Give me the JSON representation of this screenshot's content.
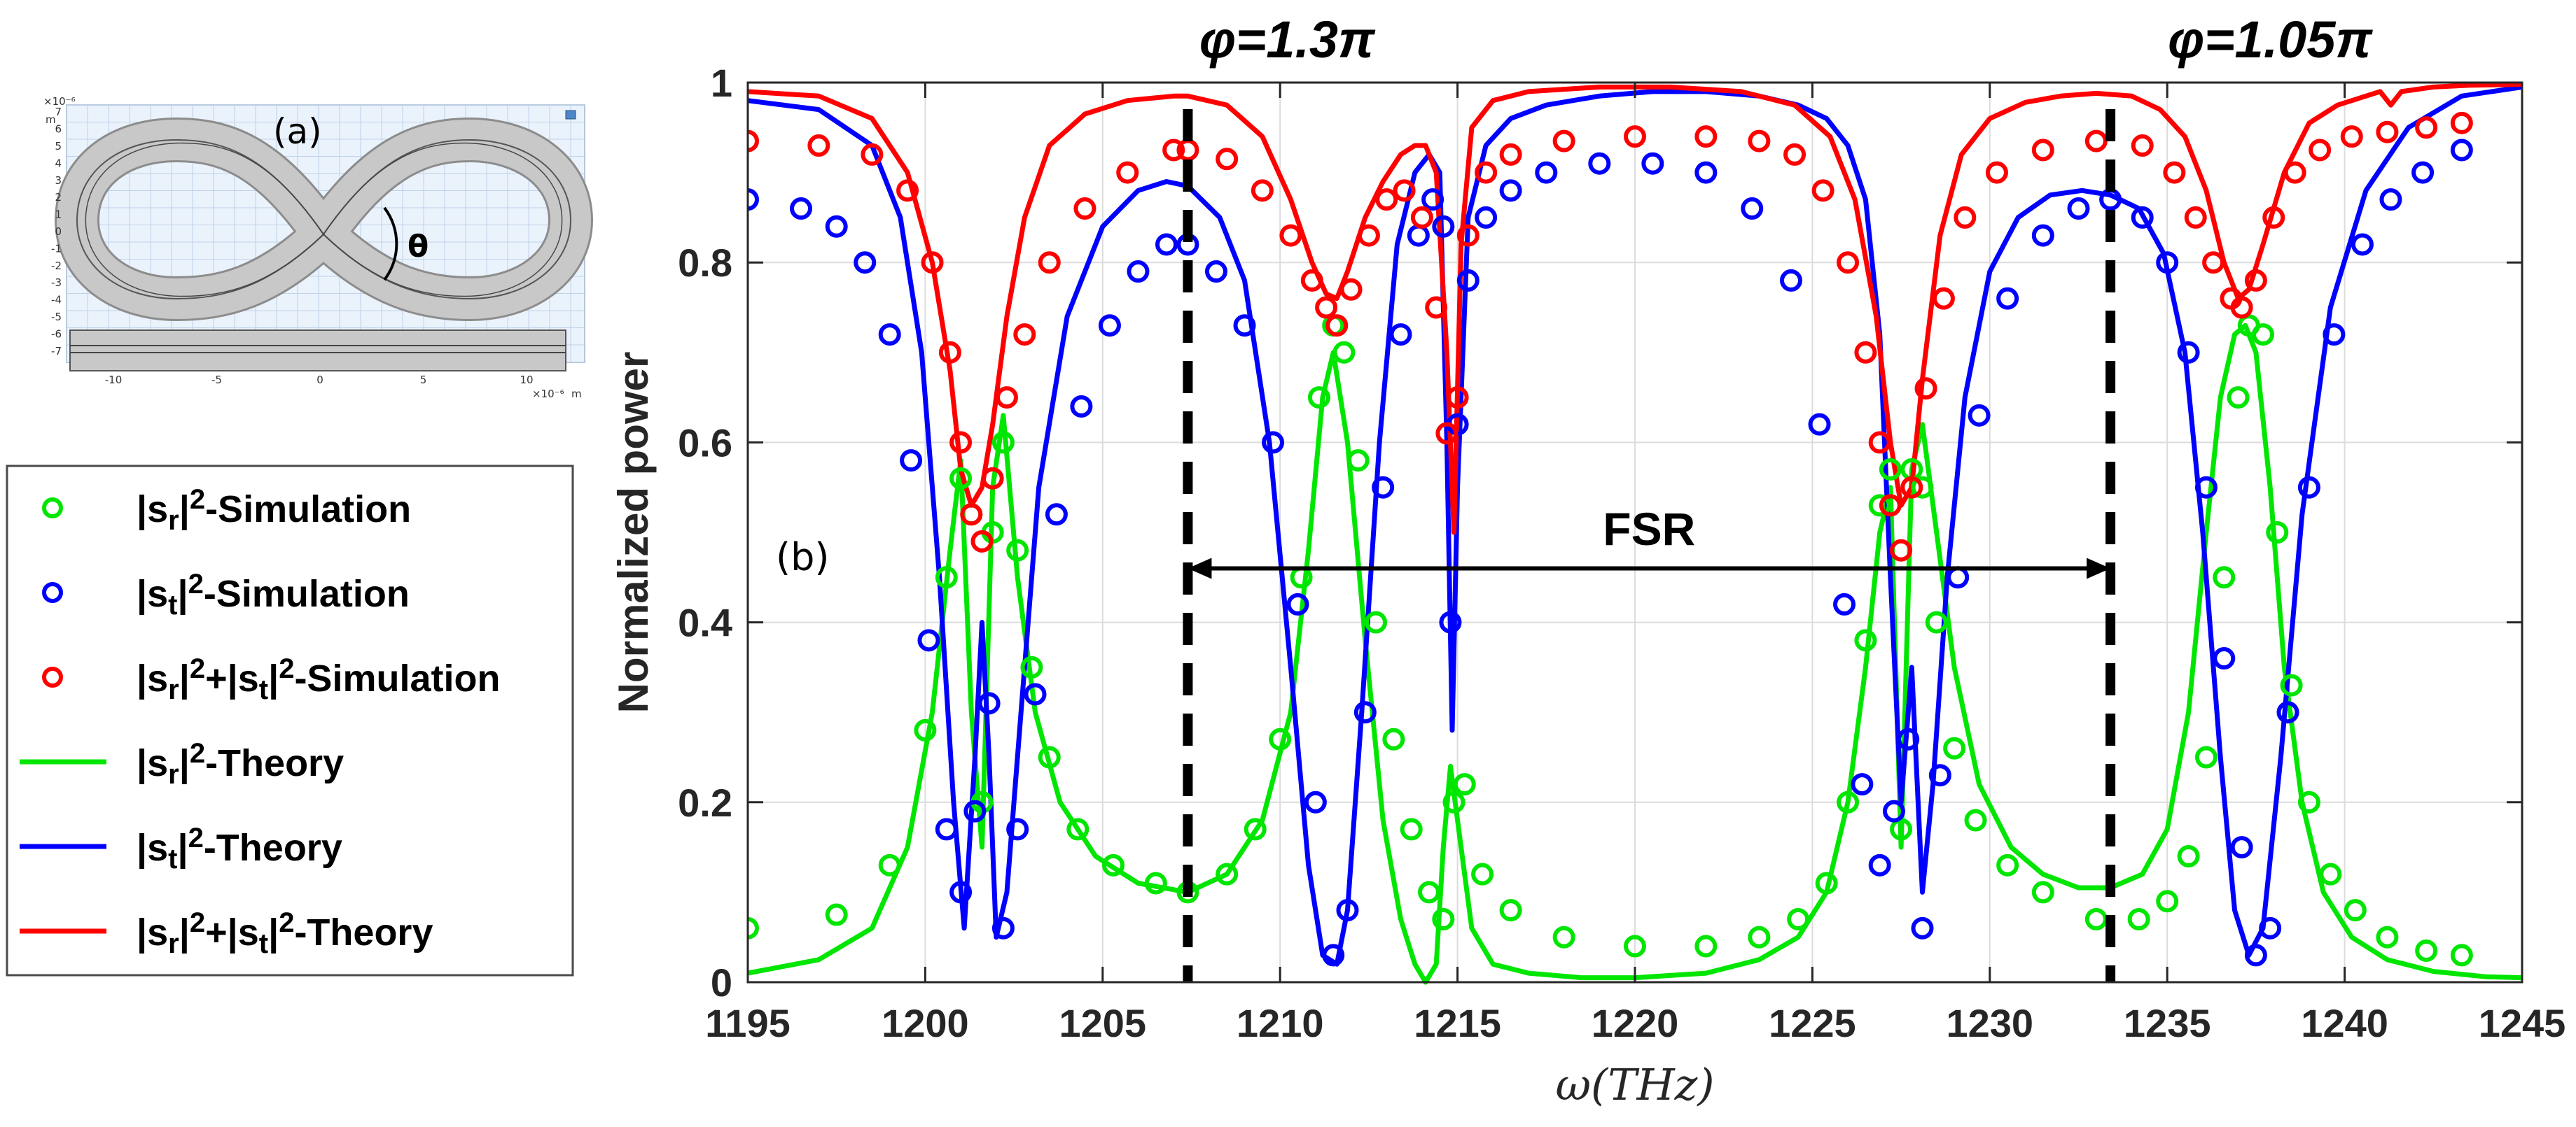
{
  "inset": {
    "label": "(a)",
    "angle_symbol": "θ",
    "x_exponent": "×10⁻⁶",
    "x_unit": "m",
    "y_exponent": "×10⁻⁶",
    "y_unit": "m",
    "x_ticks": [
      "-10",
      "-5",
      "0",
      "5",
      "10"
    ],
    "y_ticks": [
      "7",
      "6",
      "5",
      "4",
      "3",
      "2",
      "1",
      "0",
      "-1",
      "-2",
      "-3",
      "-4",
      "-5",
      "-6",
      "-7"
    ]
  },
  "legend": {
    "entries": [
      {
        "kind": "marker",
        "color": "#00e600",
        "base": "|s",
        "sub1": "r",
        "sup1": "2",
        "mid": "",
        "sub2": "",
        "sup2": "",
        "suffix": "-Simulation"
      },
      {
        "kind": "marker",
        "color": "#0000ff",
        "base": "|s",
        "sub1": "t",
        "sup1": "2",
        "mid": "",
        "sub2": "",
        "sup2": "",
        "suffix": "-Simulation"
      },
      {
        "kind": "marker",
        "color": "#ff0000",
        "base": "|s",
        "sub1": "r",
        "sup1": "2",
        "mid": "+|s",
        "sub2": "t",
        "sup2": "2",
        "suffix": "-Simulation"
      },
      {
        "kind": "line",
        "color": "#00e600",
        "base": "|s",
        "sub1": "r",
        "sup1": "2",
        "mid": "",
        "sub2": "",
        "sup2": "",
        "suffix": "-Theory"
      },
      {
        "kind": "line",
        "color": "#0000ff",
        "base": "|s",
        "sub1": "t",
        "sup1": "2",
        "mid": "",
        "sub2": "",
        "sup2": "",
        "suffix": "-Theory"
      },
      {
        "kind": "line",
        "color": "#ff0000",
        "base": "|s",
        "sub1": "r",
        "sup1": "2",
        "mid": "+|s",
        "sub2": "t",
        "sup2": "2",
        "suffix": "-Theory"
      }
    ]
  },
  "chart_data": {
    "type": "line",
    "title": "",
    "xlabel": "ω(THz)",
    "ylabel": "Normalized power",
    "xlim": [
      1195,
      1245
    ],
    "ylim": [
      0,
      1
    ],
    "x_ticks": [
      1195,
      1200,
      1205,
      1210,
      1215,
      1220,
      1225,
      1230,
      1235,
      1240,
      1245
    ],
    "y_ticks": [
      0,
      0.2,
      0.4,
      0.6,
      0.8,
      1
    ],
    "x_tick_labels": [
      "1195",
      "1200",
      "1205",
      "1210",
      "1215",
      "1220",
      "1225",
      "1230",
      "1235",
      "1240",
      "1245"
    ],
    "y_tick_labels": [
      "0",
      "0.2",
      "0.4",
      "0.6",
      "0.8",
      "1"
    ],
    "grid": true,
    "panel_label": "(b)",
    "annotations": [
      {
        "text": "φ=1.3π",
        "x": 1210.2
      },
      {
        "text": "φ=1.05π",
        "x": 1237.9
      },
      {
        "text": "FSR",
        "x": 1220.4,
        "y": 0.5
      }
    ],
    "dashed_lines_x": [
      1207.4,
      1233.4
    ],
    "fsr_arrow": {
      "x_start": 1207.4,
      "x_end": 1233.4,
      "y": 0.46
    },
    "series": [
      {
        "name": "|s_r|^2-Simulation",
        "style": "marker",
        "color": "#00e600",
        "x": [
          1195.0,
          1197.5,
          1199.0,
          1200.0,
          1200.6,
          1201.0,
          1201.3,
          1201.6,
          1201.9,
          1202.2,
          1202.6,
          1203.0,
          1203.5,
          1204.3,
          1205.3,
          1206.5,
          1207.4,
          1208.5,
          1209.3,
          1210.0,
          1210.6,
          1211.1,
          1211.5,
          1211.8,
          1212.2,
          1212.7,
          1213.2,
          1213.7,
          1214.2,
          1214.6,
          1214.9,
          1215.2,
          1215.7,
          1216.5,
          1218.0,
          1220.0,
          1222.0,
          1223.5,
          1224.6,
          1225.4,
          1226.0,
          1226.5,
          1226.9,
          1227.2,
          1227.5,
          1227.8,
          1228.1,
          1228.5,
          1229.0,
          1229.6,
          1230.5,
          1231.5,
          1233.0,
          1234.2,
          1235.0,
          1235.6,
          1236.1,
          1236.6,
          1237.0,
          1237.3,
          1237.7,
          1238.1,
          1238.5,
          1239.0,
          1239.6,
          1240.3,
          1241.2,
          1242.3,
          1243.3
        ],
        "y": [
          0.06,
          0.075,
          0.13,
          0.28,
          0.45,
          0.56,
          0.52,
          0.2,
          0.5,
          0.6,
          0.48,
          0.35,
          0.25,
          0.17,
          0.13,
          0.11,
          0.1,
          0.12,
          0.17,
          0.27,
          0.45,
          0.65,
          0.73,
          0.7,
          0.58,
          0.4,
          0.27,
          0.17,
          0.1,
          0.07,
          0.2,
          0.22,
          0.12,
          0.08,
          0.05,
          0.04,
          0.04,
          0.05,
          0.07,
          0.11,
          0.2,
          0.38,
          0.53,
          0.57,
          0.17,
          0.57,
          0.55,
          0.4,
          0.26,
          0.18,
          0.13,
          0.1,
          0.07,
          0.07,
          0.09,
          0.14,
          0.25,
          0.45,
          0.65,
          0.73,
          0.72,
          0.5,
          0.33,
          0.2,
          0.12,
          0.08,
          0.05,
          0.035,
          0.03
        ]
      },
      {
        "name": "|s_t|^2-Simulation",
        "style": "marker",
        "color": "#0000ff",
        "x": [
          1195.0,
          1196.5,
          1197.5,
          1198.3,
          1199.0,
          1199.6,
          1200.1,
          1200.6,
          1201.0,
          1201.4,
          1201.8,
          1202.2,
          1202.6,
          1203.1,
          1203.7,
          1204.4,
          1205.2,
          1206.0,
          1206.8,
          1207.4,
          1208.2,
          1209.0,
          1209.8,
          1210.5,
          1211.0,
          1211.5,
          1211.9,
          1212.4,
          1212.9,
          1213.4,
          1213.9,
          1214.3,
          1214.6,
          1214.8,
          1215.0,
          1215.3,
          1215.8,
          1216.5,
          1217.5,
          1219.0,
          1220.5,
          1222.0,
          1223.3,
          1224.4,
          1225.2,
          1225.9,
          1226.4,
          1226.9,
          1227.3,
          1227.7,
          1228.1,
          1228.6,
          1229.1,
          1229.7,
          1230.5,
          1231.5,
          1232.5,
          1233.4,
          1234.3,
          1235.0,
          1235.6,
          1236.1,
          1236.6,
          1237.1,
          1237.5,
          1237.9,
          1238.4,
          1239.0,
          1239.7,
          1240.5,
          1241.3,
          1242.2,
          1243.3
        ],
        "y": [
          0.87,
          0.86,
          0.84,
          0.8,
          0.72,
          0.58,
          0.38,
          0.17,
          0.1,
          0.19,
          0.31,
          0.06,
          0.17,
          0.32,
          0.52,
          0.64,
          0.73,
          0.79,
          0.82,
          0.82,
          0.79,
          0.73,
          0.6,
          0.42,
          0.2,
          0.03,
          0.08,
          0.3,
          0.55,
          0.72,
          0.83,
          0.87,
          0.84,
          0.4,
          0.62,
          0.78,
          0.85,
          0.88,
          0.9,
          0.91,
          0.91,
          0.9,
          0.86,
          0.78,
          0.62,
          0.42,
          0.22,
          0.13,
          0.19,
          0.27,
          0.06,
          0.23,
          0.45,
          0.63,
          0.76,
          0.83,
          0.86,
          0.87,
          0.85,
          0.8,
          0.7,
          0.55,
          0.36,
          0.15,
          0.03,
          0.06,
          0.3,
          0.55,
          0.72,
          0.82,
          0.87,
          0.9,
          0.925
        ]
      },
      {
        "name": "|s_r|^2+|s_t|^2-Simulation",
        "style": "marker",
        "color": "#ff0000",
        "x": [
          1195.0,
          1197.0,
          1198.5,
          1199.5,
          1200.2,
          1200.7,
          1201.0,
          1201.3,
          1201.6,
          1201.9,
          1202.3,
          1202.8,
          1203.5,
          1204.5,
          1205.7,
          1207.0,
          1207.4,
          1208.5,
          1209.5,
          1210.3,
          1210.9,
          1211.3,
          1211.6,
          1212.0,
          1212.5,
          1213.0,
          1213.5,
          1214.0,
          1214.4,
          1214.7,
          1215.0,
          1215.3,
          1215.8,
          1216.5,
          1218.0,
          1220.0,
          1222.0,
          1223.5,
          1224.5,
          1225.3,
          1226.0,
          1226.5,
          1226.9,
          1227.2,
          1227.5,
          1227.8,
          1228.2,
          1228.7,
          1229.3,
          1230.2,
          1231.5,
          1233.0,
          1234.3,
          1235.2,
          1235.8,
          1236.3,
          1236.8,
          1237.1,
          1237.5,
          1238.0,
          1238.6,
          1239.3,
          1240.2,
          1241.2,
          1242.3,
          1243.3
        ],
        "y": [
          0.935,
          0.93,
          0.92,
          0.88,
          0.8,
          0.7,
          0.6,
          0.52,
          0.49,
          0.56,
          0.65,
          0.72,
          0.8,
          0.86,
          0.9,
          0.925,
          0.925,
          0.915,
          0.88,
          0.83,
          0.78,
          0.75,
          0.73,
          0.77,
          0.83,
          0.87,
          0.88,
          0.85,
          0.75,
          0.61,
          0.65,
          0.83,
          0.9,
          0.92,
          0.935,
          0.94,
          0.94,
          0.935,
          0.92,
          0.88,
          0.8,
          0.7,
          0.6,
          0.53,
          0.48,
          0.55,
          0.66,
          0.76,
          0.85,
          0.9,
          0.925,
          0.935,
          0.93,
          0.9,
          0.85,
          0.8,
          0.76,
          0.75,
          0.78,
          0.85,
          0.9,
          0.925,
          0.94,
          0.945,
          0.95,
          0.955
        ]
      },
      {
        "name": "|s_r|^2-Theory",
        "style": "line",
        "color": "#00e600",
        "x": [
          1195.0,
          1197.0,
          1198.5,
          1199.5,
          1200.2,
          1200.7,
          1201.0,
          1201.3,
          1201.6,
          1201.9,
          1202.2,
          1202.6,
          1203.1,
          1203.8,
          1204.8,
          1206.0,
          1207.4,
          1208.5,
          1209.5,
          1210.3,
          1210.8,
          1211.2,
          1211.5,
          1211.9,
          1212.4,
          1212.9,
          1213.4,
          1213.8,
          1214.1,
          1214.4,
          1214.6,
          1214.8,
          1215.0,
          1215.4,
          1216.0,
          1217.0,
          1218.5,
          1220.0,
          1222.0,
          1223.5,
          1224.6,
          1225.4,
          1226.0,
          1226.5,
          1226.9,
          1227.2,
          1227.5,
          1227.8,
          1228.1,
          1228.5,
          1229.0,
          1229.7,
          1230.6,
          1231.5,
          1232.5,
          1233.4,
          1234.3,
          1235.0,
          1235.6,
          1236.1,
          1236.5,
          1236.9,
          1237.2,
          1237.5,
          1237.9,
          1238.3,
          1238.8,
          1239.4,
          1240.2,
          1241.2,
          1242.5,
          1244.0,
          1245.0
        ],
        "y": [
          0.01,
          0.025,
          0.06,
          0.15,
          0.3,
          0.48,
          0.58,
          0.3,
          0.15,
          0.55,
          0.63,
          0.45,
          0.3,
          0.2,
          0.14,
          0.11,
          0.1,
          0.12,
          0.18,
          0.3,
          0.48,
          0.65,
          0.7,
          0.6,
          0.38,
          0.18,
          0.07,
          0.02,
          0.0,
          0.02,
          0.15,
          0.24,
          0.18,
          0.06,
          0.02,
          0.01,
          0.005,
          0.005,
          0.01,
          0.025,
          0.05,
          0.1,
          0.2,
          0.35,
          0.5,
          0.55,
          0.15,
          0.57,
          0.62,
          0.5,
          0.35,
          0.22,
          0.15,
          0.12,
          0.105,
          0.105,
          0.12,
          0.17,
          0.3,
          0.5,
          0.65,
          0.72,
          0.73,
          0.7,
          0.55,
          0.35,
          0.2,
          0.1,
          0.05,
          0.025,
          0.012,
          0.006,
          0.005
        ]
      },
      {
        "name": "|s_t|^2-Theory",
        "style": "line",
        "color": "#0000ff",
        "x": [
          1195.0,
          1197.0,
          1198.5,
          1199.3,
          1199.9,
          1200.4,
          1200.8,
          1201.1,
          1201.4,
          1201.6,
          1201.8,
          1202.0,
          1202.3,
          1202.7,
          1203.2,
          1204.0,
          1205.0,
          1206.0,
          1206.8,
          1207.4,
          1208.3,
          1209.0,
          1209.7,
          1210.3,
          1210.8,
          1211.2,
          1211.6,
          1211.9,
          1212.3,
          1212.8,
          1213.3,
          1213.8,
          1214.2,
          1214.5,
          1214.7,
          1214.85,
          1215.0,
          1215.3,
          1215.8,
          1216.5,
          1217.5,
          1219.0,
          1220.5,
          1222.0,
          1223.5,
          1224.6,
          1225.4,
          1226.0,
          1226.5,
          1226.9,
          1227.2,
          1227.5,
          1227.8,
          1228.1,
          1228.4,
          1228.8,
          1229.3,
          1230.0,
          1230.8,
          1231.7,
          1232.6,
          1233.4,
          1234.2,
          1234.9,
          1235.5,
          1236.0,
          1236.5,
          1236.9,
          1237.3,
          1237.7,
          1238.2,
          1238.8,
          1239.6,
          1240.6,
          1241.8,
          1243.3,
          1245.0
        ],
        "y": [
          0.98,
          0.97,
          0.93,
          0.85,
          0.7,
          0.45,
          0.2,
          0.06,
          0.25,
          0.4,
          0.25,
          0.05,
          0.1,
          0.3,
          0.55,
          0.74,
          0.84,
          0.88,
          0.89,
          0.885,
          0.85,
          0.78,
          0.6,
          0.35,
          0.13,
          0.03,
          0.02,
          0.08,
          0.3,
          0.6,
          0.82,
          0.9,
          0.92,
          0.9,
          0.6,
          0.28,
          0.55,
          0.85,
          0.93,
          0.96,
          0.975,
          0.985,
          0.99,
          0.99,
          0.985,
          0.975,
          0.96,
          0.93,
          0.87,
          0.72,
          0.45,
          0.2,
          0.35,
          0.1,
          0.22,
          0.45,
          0.65,
          0.79,
          0.85,
          0.875,
          0.88,
          0.875,
          0.86,
          0.81,
          0.7,
          0.5,
          0.25,
          0.08,
          0.03,
          0.06,
          0.25,
          0.52,
          0.75,
          0.88,
          0.95,
          0.985,
          0.995
        ]
      },
      {
        "name": "|s_r|^2+|s_t|^2-Theory",
        "style": "line",
        "color": "#ff0000",
        "x": [
          1195.0,
          1197.0,
          1198.5,
          1199.5,
          1200.2,
          1200.7,
          1201.0,
          1201.3,
          1201.6,
          1201.9,
          1202.3,
          1202.8,
          1203.5,
          1204.5,
          1205.7,
          1207.0,
          1207.4,
          1208.5,
          1209.5,
          1210.3,
          1210.9,
          1211.3,
          1211.6,
          1211.9,
          1212.4,
          1212.9,
          1213.4,
          1213.8,
          1214.1,
          1214.4,
          1214.7,
          1214.9,
          1215.1,
          1215.4,
          1216.0,
          1217.0,
          1219.0,
          1221.0,
          1223.0,
          1224.5,
          1225.5,
          1226.2,
          1226.8,
          1227.2,
          1227.5,
          1227.8,
          1228.1,
          1228.6,
          1229.2,
          1230.0,
          1231.0,
          1232.0,
          1233.0,
          1234.0,
          1234.8,
          1235.5,
          1236.1,
          1236.6,
          1237.0,
          1237.3,
          1237.7,
          1238.3,
          1239.0,
          1239.8,
          1240.6,
          1241.0,
          1241.3,
          1241.6,
          1242.5,
          1243.5,
          1245.0
        ],
        "y": [
          0.99,
          0.985,
          0.96,
          0.9,
          0.8,
          0.68,
          0.57,
          0.53,
          0.55,
          0.62,
          0.74,
          0.85,
          0.93,
          0.965,
          0.98,
          0.985,
          0.985,
          0.975,
          0.94,
          0.87,
          0.8,
          0.765,
          0.76,
          0.79,
          0.85,
          0.89,
          0.92,
          0.93,
          0.93,
          0.9,
          0.7,
          0.5,
          0.82,
          0.95,
          0.98,
          0.99,
          0.995,
          0.995,
          0.99,
          0.975,
          0.94,
          0.87,
          0.74,
          0.6,
          0.53,
          0.55,
          0.67,
          0.83,
          0.92,
          0.96,
          0.978,
          0.985,
          0.988,
          0.985,
          0.97,
          0.94,
          0.88,
          0.8,
          0.76,
          0.77,
          0.82,
          0.9,
          0.955,
          0.975,
          0.985,
          0.99,
          0.975,
          0.99,
          0.995,
          0.997,
          0.998
        ]
      }
    ]
  }
}
